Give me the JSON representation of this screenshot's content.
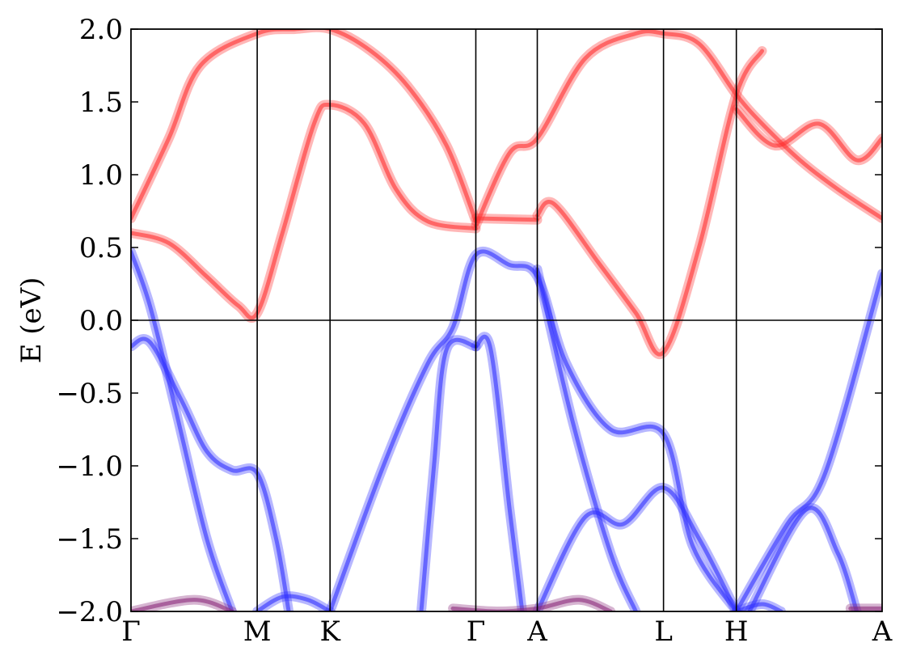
{
  "chart_data": {
    "type": "line",
    "ylabel": "E (eV)",
    "ylim": [
      -2.0,
      2.0
    ],
    "y_ticks": [
      "2.0",
      "1.5",
      "1.0",
      "0.5",
      "0.0",
      "−0.5",
      "−1.0",
      "−1.5",
      "−2.0"
    ],
    "y_tick_values": [
      2.0,
      1.5,
      1.0,
      0.5,
      0.0,
      -0.5,
      -1.0,
      -1.5,
      -2.0
    ],
    "kpath": [
      {
        "label": "Γ",
        "k": 0.0
      },
      {
        "label": "M",
        "k": 1.0
      },
      {
        "label": "K",
        "k": 1.577
      },
      {
        "label": "Γ",
        "k": 2.732
      },
      {
        "label": "A",
        "k": 3.219
      },
      {
        "label": "L",
        "k": 4.219
      },
      {
        "label": "H",
        "k": 4.796
      },
      {
        "label": "A",
        "k": 5.951
      }
    ],
    "fermi_level": 0.0,
    "grid": false,
    "colors": {
      "conduction": "#ff3030",
      "valence": "#3030ff",
      "mixed": "#8a2a7a"
    },
    "series": [
      {
        "character": "conduction",
        "points": [
          [
            0.0,
            0.6
          ],
          [
            0.3,
            0.53
          ],
          [
            0.6,
            0.3
          ],
          [
            0.85,
            0.1
          ],
          [
            1.0,
            0.05
          ],
          [
            1.2,
            0.6
          ],
          [
            1.45,
            1.35
          ],
          [
            1.577,
            1.48
          ],
          [
            1.85,
            1.35
          ],
          [
            2.1,
            0.9
          ],
          [
            2.35,
            0.68
          ],
          [
            2.732,
            0.63
          ]
        ]
      },
      {
        "character": "conduction",
        "points": [
          [
            0.0,
            0.7
          ],
          [
            0.3,
            1.25
          ],
          [
            0.55,
            1.75
          ],
          [
            1.0,
            1.97
          ],
          [
            1.3,
            2.0
          ],
          [
            1.577,
            2.0
          ],
          [
            1.9,
            1.85
          ],
          [
            2.2,
            1.6
          ],
          [
            2.5,
            1.2
          ],
          [
            2.732,
            0.68
          ]
        ]
      },
      {
        "character": "conduction",
        "points": [
          [
            2.732,
            0.7
          ],
          [
            3.219,
            0.69
          ]
        ]
      },
      {
        "character": "conduction",
        "points": [
          [
            2.732,
            0.65
          ],
          [
            3.0,
            1.15
          ],
          [
            3.219,
            1.25
          ],
          [
            3.6,
            1.8
          ],
          [
            4.0,
            1.97
          ],
          [
            4.219,
            1.97
          ],
          [
            4.5,
            1.9
          ],
          [
            4.796,
            1.55
          ],
          [
            5.0,
            1.35
          ],
          [
            5.3,
            1.1
          ],
          [
            5.6,
            0.9
          ],
          [
            5.951,
            0.7
          ]
        ]
      },
      {
        "character": "conduction",
        "points": [
          [
            3.219,
            0.72
          ],
          [
            3.35,
            0.8
          ],
          [
            3.7,
            0.4
          ],
          [
            4.0,
            0.05
          ],
          [
            4.219,
            -0.22
          ],
          [
            4.5,
            0.5
          ],
          [
            4.796,
            1.55
          ],
          [
            5.0,
            1.85
          ]
        ]
      },
      {
        "character": "conduction",
        "points": [
          [
            4.796,
            1.45
          ],
          [
            5.1,
            1.2
          ],
          [
            5.45,
            1.35
          ],
          [
            5.75,
            1.1
          ],
          [
            5.951,
            1.25
          ]
        ]
      },
      {
        "character": "valence",
        "points": [
          [
            0.0,
            0.47
          ],
          [
            0.15,
            0.1
          ],
          [
            0.35,
            -0.6
          ],
          [
            0.6,
            -1.5
          ],
          [
            0.8,
            -2.0
          ]
        ]
      },
      {
        "character": "valence",
        "points": [
          [
            0.0,
            -0.18
          ],
          [
            0.15,
            -0.15
          ],
          [
            0.4,
            -0.55
          ],
          [
            0.6,
            -0.9
          ],
          [
            0.8,
            -1.03
          ],
          [
            1.0,
            -1.05
          ],
          [
            1.15,
            -1.5
          ],
          [
            1.25,
            -2.0
          ]
        ]
      },
      {
        "character": "valence",
        "points": [
          [
            1.577,
            -2.0
          ],
          [
            2.0,
            -1.0
          ],
          [
            2.35,
            -0.3
          ],
          [
            2.55,
            -0.05
          ],
          [
            2.732,
            0.45
          ],
          [
            3.0,
            0.38
          ],
          [
            3.219,
            0.3
          ],
          [
            3.45,
            -0.3
          ],
          [
            3.8,
            -0.75
          ],
          [
            4.219,
            -0.78
          ],
          [
            4.45,
            -1.55
          ],
          [
            4.796,
            -2.0
          ]
        ]
      },
      {
        "character": "valence",
        "points": [
          [
            2.732,
            -0.18
          ],
          [
            2.5,
            -0.2
          ],
          [
            2.4,
            -1.0
          ],
          [
            2.3,
            -2.0
          ]
        ]
      },
      {
        "character": "valence",
        "points": [
          [
            2.732,
            -0.18
          ],
          [
            2.85,
            -0.2
          ],
          [
            3.0,
            -1.3
          ],
          [
            3.1,
            -2.0
          ]
        ]
      },
      {
        "character": "valence",
        "points": [
          [
            3.219,
            -2.0
          ],
          [
            3.6,
            -1.35
          ],
          [
            3.9,
            -1.4
          ],
          [
            4.219,
            -1.15
          ],
          [
            4.5,
            -1.5
          ],
          [
            4.796,
            -2.0
          ]
        ]
      },
      {
        "character": "valence",
        "points": [
          [
            4.796,
            -2.0
          ],
          [
            5.2,
            -1.4
          ],
          [
            5.5,
            -1.05
          ],
          [
            5.951,
            0.32
          ]
        ]
      },
      {
        "character": "valence",
        "points": [
          [
            3.219,
            0.35
          ],
          [
            3.5,
            -0.7
          ],
          [
            3.8,
            -1.6
          ],
          [
            4.0,
            -2.0
          ]
        ]
      },
      {
        "character": "valence",
        "points": [
          [
            4.9,
            -2.0
          ],
          [
            5.35,
            -1.3
          ],
          [
            5.6,
            -1.6
          ],
          [
            5.75,
            -2.0
          ]
        ]
      },
      {
        "character": "valence",
        "points": [
          [
            1.0,
            -2.0
          ],
          [
            1.2,
            -1.9
          ],
          [
            1.4,
            -1.92
          ],
          [
            1.577,
            -2.0
          ]
        ]
      },
      {
        "character": "valence",
        "points": [
          [
            4.796,
            -2.0
          ],
          [
            5.0,
            -1.95
          ],
          [
            5.15,
            -2.0
          ]
        ]
      },
      {
        "character": "mixed",
        "points": [
          [
            0.0,
            -2.0
          ],
          [
            0.5,
            -1.92
          ],
          [
            0.8,
            -2.0
          ]
        ]
      },
      {
        "character": "mixed",
        "points": [
          [
            2.55,
            -1.98
          ],
          [
            2.9,
            -2.0
          ],
          [
            3.219,
            -1.98
          ],
          [
            3.55,
            -1.92
          ],
          [
            3.8,
            -2.0
          ]
        ]
      },
      {
        "character": "mixed",
        "points": [
          [
            5.7,
            -1.98
          ],
          [
            5.951,
            -1.98
          ]
        ]
      }
    ]
  }
}
